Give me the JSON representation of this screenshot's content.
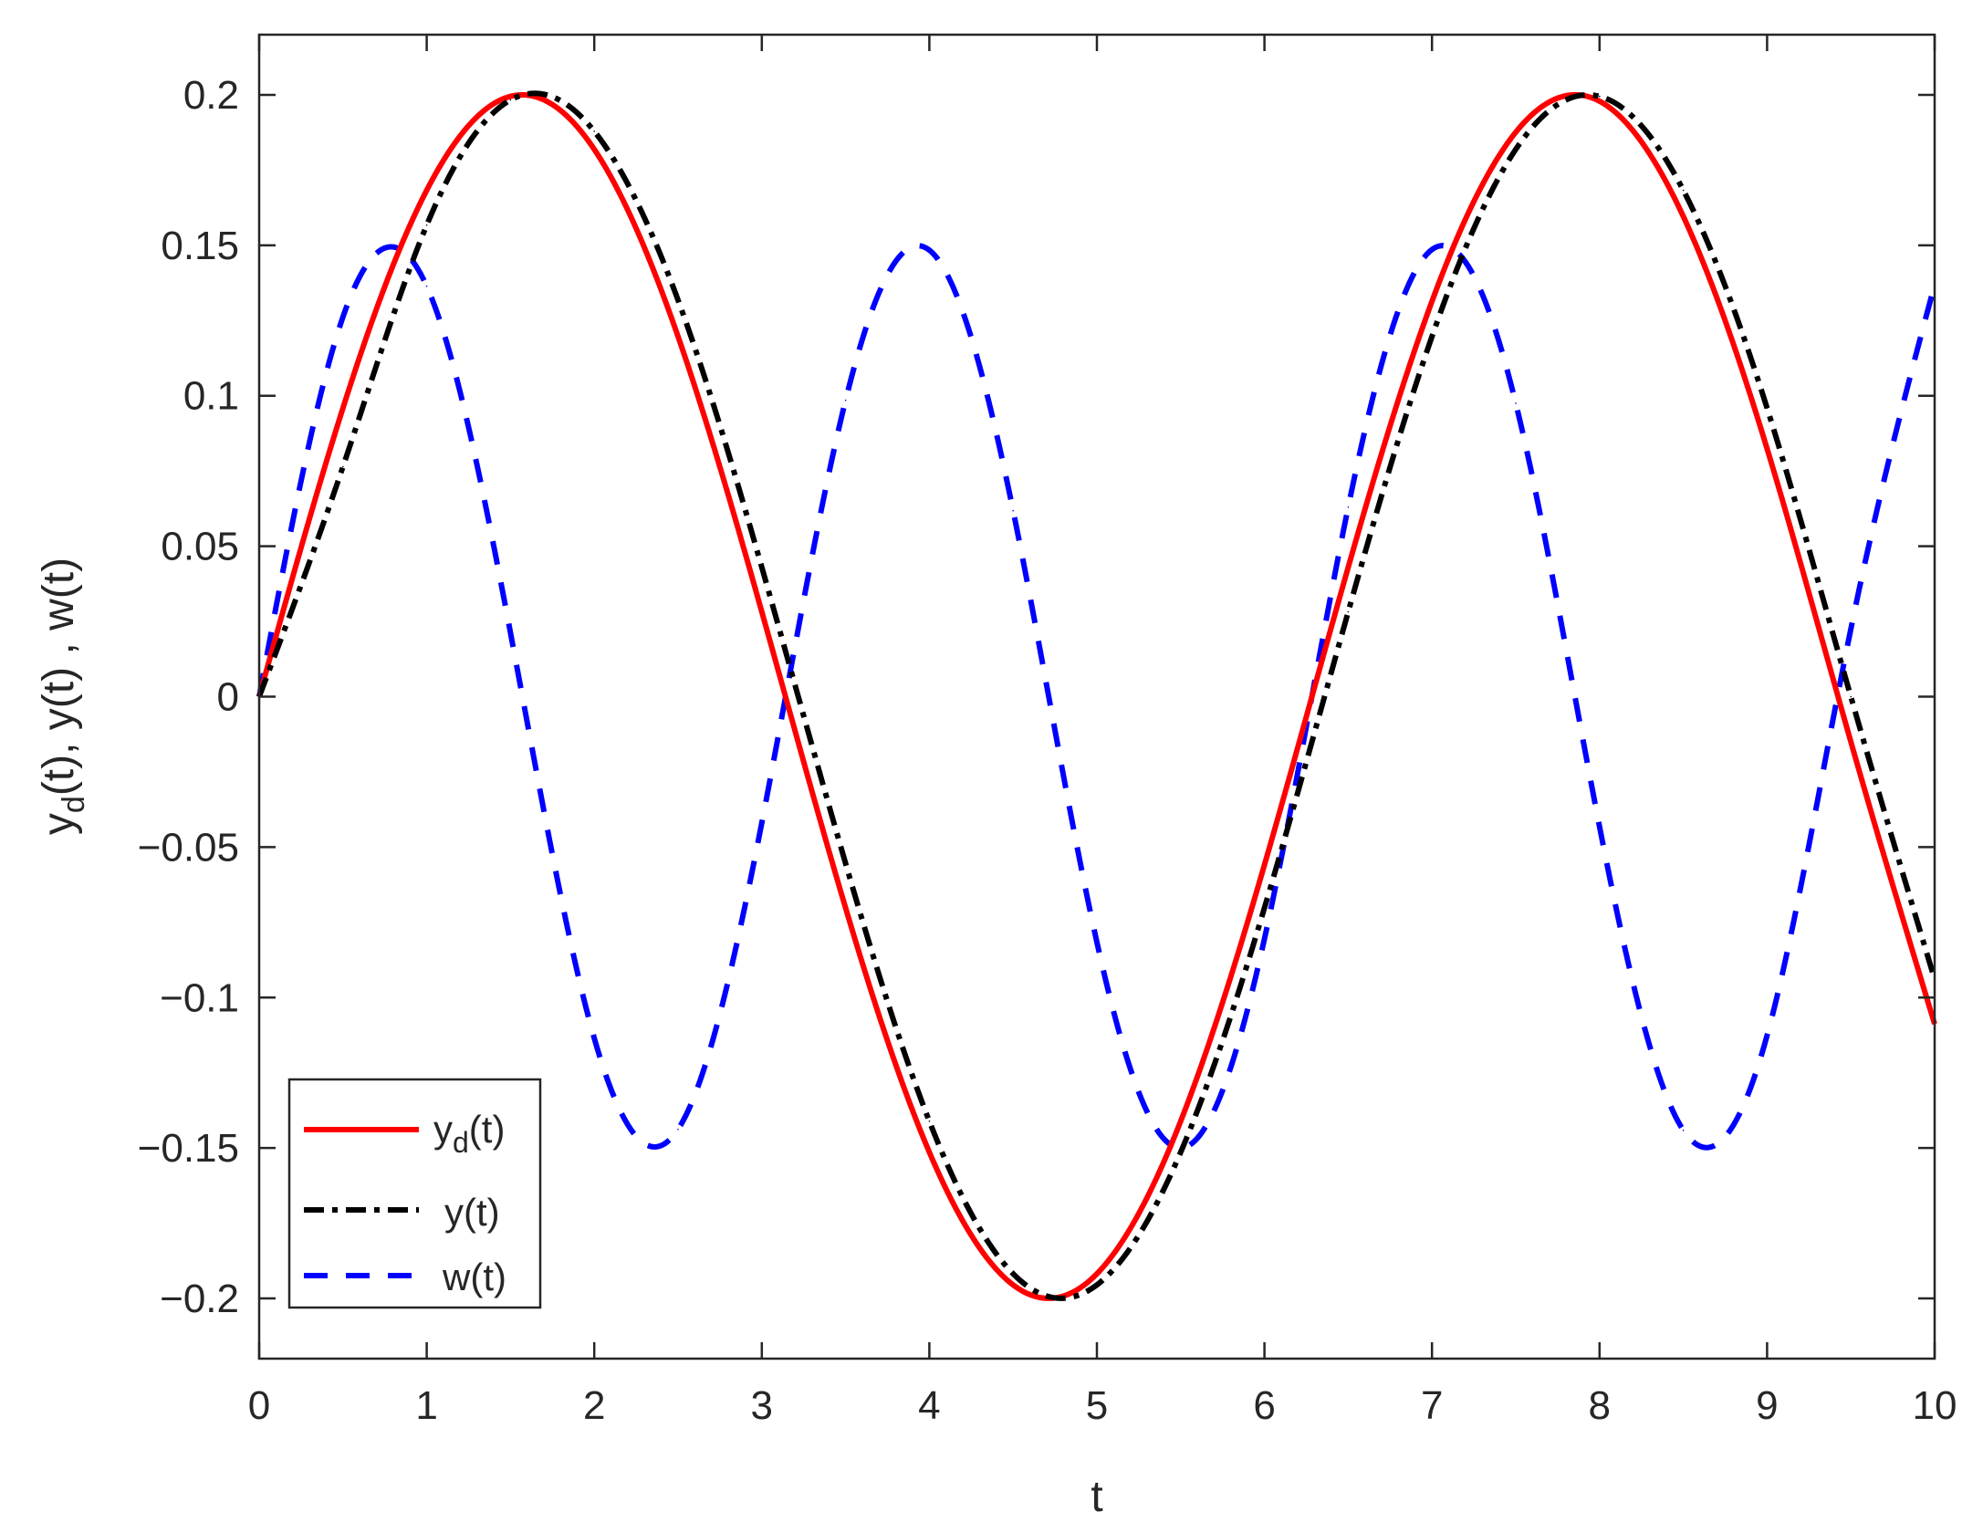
{
  "chart_data": {
    "type": "line",
    "title": "",
    "xlabel": "t",
    "ylabel": "y_d(t), y(t) , w(t)",
    "ylabel_parts": {
      "y1": "y",
      "sub": "d",
      "rest": "(t), y(t) , w(t)"
    },
    "xlim": [
      0,
      10
    ],
    "ylim": [
      -0.22,
      0.22
    ],
    "xticks": [
      0,
      1,
      2,
      3,
      4,
      5,
      6,
      7,
      8,
      9,
      10
    ],
    "xtick_labels": [
      "0",
      "1",
      "2",
      "3",
      "4",
      "5",
      "6",
      "7",
      "8",
      "9",
      "10"
    ],
    "yticks": [
      0.2,
      0.15,
      0.1,
      0.05,
      0,
      -0.05,
      -0.1,
      -0.15,
      -0.2
    ],
    "ytick_labels": [
      "0.2",
      "0.15",
      "0.1",
      "0.05",
      "0",
      "−0.05",
      "−0.1",
      "−0.15",
      "−0.2"
    ],
    "grid": false,
    "legend_position": "bottom-left",
    "sample_t": [
      0,
      0.5,
      1,
      1.5,
      2,
      2.5,
      3,
      3.5,
      4,
      4.5,
      5,
      5.5,
      6,
      6.5,
      7,
      7.5,
      8,
      8.5,
      9,
      9.5,
      10
    ],
    "series": [
      {
        "name": "y_d(t)",
        "legend": {
          "main": "y",
          "sub": "d",
          "rest": "(t)"
        },
        "color": "#ff0000",
        "style": "solid",
        "values": [
          0,
          0.0959,
          0.1683,
          0.1995,
          0.1819,
          0.1197,
          0.0282,
          -0.0702,
          -0.1514,
          -0.1955,
          -0.1918,
          -0.1411,
          -0.0559,
          0.043,
          0.1314,
          0.1876,
          0.1979,
          0.1596,
          0.0824,
          -0.015,
          -0.1088
        ]
      },
      {
        "name": "y(t)",
        "legend": {
          "main": "y(t)",
          "sub": "",
          "rest": ""
        },
        "color": "#000000",
        "style": "dashdot",
        "values": [
          0,
          0.0764,
          0.1567,
          0.1983,
          0.1879,
          0.1318,
          0.043,
          -0.0554,
          -0.1411,
          -0.1918,
          -0.1955,
          -0.1514,
          -0.0702,
          0.0282,
          0.1197,
          0.1819,
          0.1995,
          0.1683,
          0.0959,
          0,
          -0.0939
        ]
      },
      {
        "name": "w(t)",
        "legend": {
          "main": "w(t)",
          "sub": "",
          "rest": ""
        },
        "color": "#0000ff",
        "style": "dashed",
        "values": [
          0,
          0.1262,
          0.1364,
          0.0212,
          -0.1135,
          -0.1438,
          -0.0419,
          0.0985,
          0.1484,
          0.0618,
          -0.0816,
          -0.15,
          -0.0805,
          0.063,
          0.1486,
          0.0975,
          -0.0432,
          -0.1441,
          -0.1126,
          0.0225,
          0.1369
        ]
      }
    ]
  }
}
